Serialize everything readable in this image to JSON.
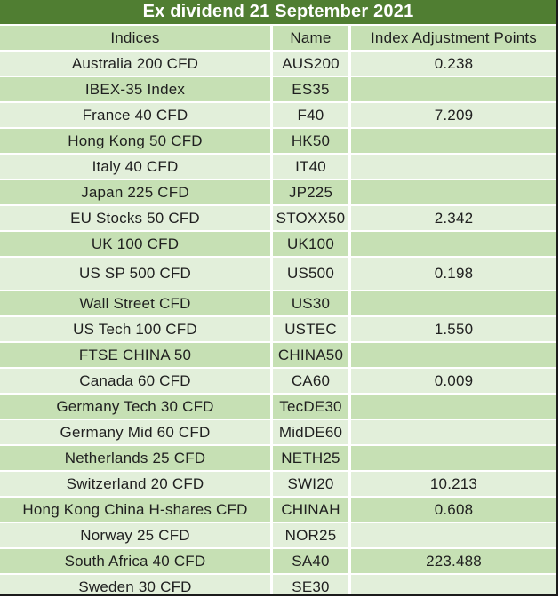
{
  "colors": {
    "header_bg": "#507e32",
    "header_text": "#ffffff",
    "row_medium": "#c6e0b4",
    "row_light": "#e2efda",
    "grid": "#ffffff",
    "text": "#1f1f1f",
    "edge": "#1b1b1b"
  },
  "chart_data": {
    "type": "table",
    "title": "Ex dividend 21 September 2021",
    "columns": [
      "Indices",
      "Name",
      "Index Adjustment Points"
    ],
    "rows": [
      [
        "Australia 200 CFD",
        "AUS200",
        "0.238"
      ],
      [
        "IBEX-35 Index",
        "ES35",
        ""
      ],
      [
        "France 40 CFD",
        "F40",
        "7.209"
      ],
      [
        "Hong Kong 50 CFD",
        "HK50",
        ""
      ],
      [
        "Italy 40 CFD",
        "IT40",
        ""
      ],
      [
        "Japan 225 CFD",
        "JP225",
        ""
      ],
      [
        "EU Stocks 50 CFD",
        "STOXX50",
        "2.342"
      ],
      [
        "UK 100 CFD",
        "UK100",
        ""
      ],
      [
        "US SP 500 CFD",
        "US500",
        "0.198"
      ],
      [
        "Wall Street CFD",
        "US30",
        ""
      ],
      [
        "US Tech 100 CFD",
        "USTEC",
        "1.550"
      ],
      [
        "FTSE CHINA 50",
        "CHINA50",
        ""
      ],
      [
        "Canada 60 CFD",
        "CA60",
        "0.009"
      ],
      [
        "Germany Tech 30 CFD",
        "TecDE30",
        ""
      ],
      [
        "Germany Mid 60 CFD",
        "MidDE60",
        ""
      ],
      [
        "Netherlands 25 CFD",
        "NETH25",
        ""
      ],
      [
        "Switzerland 20 CFD",
        "SWI20",
        "10.213"
      ],
      [
        "Hong Kong China H-shares CFD",
        "CHINAH",
        "0.608"
      ],
      [
        "Norway 25 CFD",
        "NOR25",
        ""
      ],
      [
        "South Africa 40 CFD",
        "SA40",
        "223.488"
      ],
      [
        "Sweden 30 CFD",
        "SE30",
        ""
      ]
    ]
  }
}
